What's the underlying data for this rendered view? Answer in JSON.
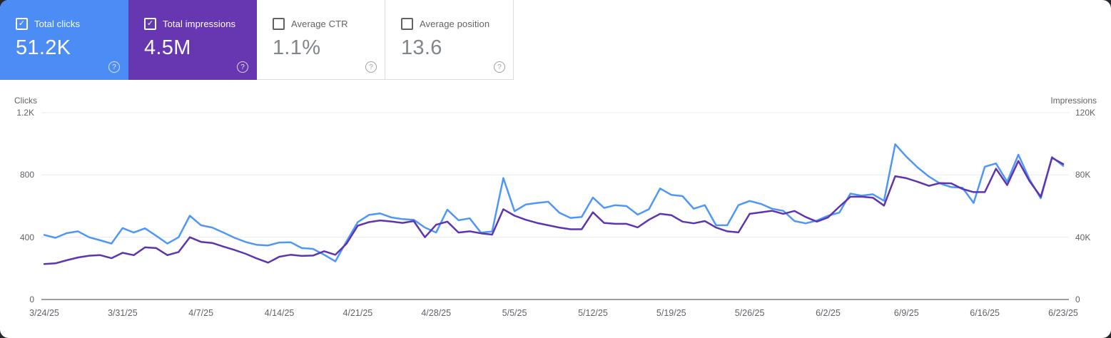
{
  "cards": [
    {
      "label": "Total clicks",
      "value": "51.2K",
      "checked": true,
      "bg": "#4b8cf5",
      "help_glyph": "?"
    },
    {
      "label": "Total impressions",
      "value": "4.5M",
      "checked": true,
      "bg": "#6637b0",
      "help_glyph": "?"
    },
    {
      "label": "Average CTR",
      "value": "1.1%",
      "checked": false,
      "bg": "#ffffff",
      "help_glyph": "?"
    },
    {
      "label": "Average position",
      "value": "13.6",
      "checked": false,
      "bg": "#ffffff",
      "help_glyph": "?"
    }
  ],
  "check_glyph": "✓",
  "chart": {
    "left_axis": {
      "title": "Clicks",
      "ticks": [
        "1.2K",
        "800",
        "400",
        "0"
      ]
    },
    "right_axis": {
      "title": "Impressions",
      "ticks": [
        "120K",
        "80K",
        "40K",
        "0"
      ]
    },
    "x_ticks": [
      "3/24/25",
      "3/31/25",
      "4/7/25",
      "4/14/25",
      "4/21/25",
      "4/28/25",
      "5/5/25",
      "5/12/25",
      "5/19/25",
      "5/26/25",
      "6/2/25",
      "6/9/25",
      "6/16/25",
      "6/23/25"
    ]
  },
  "chart_data": {
    "type": "line",
    "title": "Search performance over time",
    "x_is_daily": true,
    "x": [
      "3/24/25",
      "3/25/25",
      "3/26/25",
      "3/27/25",
      "3/28/25",
      "3/29/25",
      "3/30/25",
      "3/31/25",
      "4/1/25",
      "4/2/25",
      "4/3/25",
      "4/4/25",
      "4/5/25",
      "4/6/25",
      "4/7/25",
      "4/8/25",
      "4/9/25",
      "4/10/25",
      "4/11/25",
      "4/12/25",
      "4/13/25",
      "4/14/25",
      "4/15/25",
      "4/16/25",
      "4/17/25",
      "4/18/25",
      "4/19/25",
      "4/20/25",
      "4/21/25",
      "4/22/25",
      "4/23/25",
      "4/24/25",
      "4/25/25",
      "4/26/25",
      "4/27/25",
      "4/28/25",
      "4/29/25",
      "4/30/25",
      "5/1/25",
      "5/2/25",
      "5/3/25",
      "5/4/25",
      "5/5/25",
      "5/6/25",
      "5/7/25",
      "5/8/25",
      "5/9/25",
      "5/10/25",
      "5/11/25",
      "5/12/25",
      "5/13/25",
      "5/14/25",
      "5/15/25",
      "5/16/25",
      "5/17/25",
      "5/18/25",
      "5/19/25",
      "5/20/25",
      "5/21/25",
      "5/22/25",
      "5/23/25",
      "5/24/25",
      "5/25/25",
      "5/26/25",
      "5/27/25",
      "5/28/25",
      "5/29/25",
      "5/30/25",
      "5/31/25",
      "6/1/25",
      "6/2/25",
      "6/3/25",
      "6/4/25",
      "6/5/25",
      "6/6/25",
      "6/7/25",
      "6/8/25",
      "6/9/25",
      "6/10/25",
      "6/11/25",
      "6/12/25",
      "6/13/25",
      "6/14/25",
      "6/15/25",
      "6/16/25",
      "6/17/25",
      "6/18/25",
      "6/19/25",
      "6/20/25",
      "6/21/25",
      "6/22/25",
      "6/23/25"
    ],
    "series": [
      {
        "name": "Total clicks",
        "axis": "left",
        "color": "#4e97f7",
        "values": [
          415,
          396,
          426,
          438,
          400,
          380,
          359,
          459,
          430,
          457,
          409,
          359,
          400,
          538,
          477,
          462,
          430,
          396,
          369,
          351,
          347,
          366,
          368,
          330,
          325,
          287,
          245,
          374,
          497,
          543,
          553,
          527,
          516,
          512,
          462,
          430,
          577,
          509,
          521,
          429,
          437,
          780,
          567,
          610,
          620,
          628,
          558,
          524,
          530,
          655,
          588,
          606,
          600,
          545,
          580,
          713,
          672,
          664,
          583,
          606,
          477,
          477,
          606,
          633,
          614,
          583,
          570,
          504,
          489,
          507,
          538,
          558,
          680,
          667,
          676,
          634,
          997,
          917,
          848,
          790,
          745,
          722,
          718,
          620,
          853,
          874,
          756,
          930,
          771,
          650,
          915,
          858
        ]
      },
      {
        "name": "Total impressions",
        "axis": "right",
        "color": "#5e35b1",
        "values": [
          22800,
          23200,
          25200,
          27000,
          28100,
          28500,
          26500,
          30000,
          28500,
          33500,
          33000,
          28500,
          30500,
          40000,
          37000,
          36300,
          34000,
          31800,
          29300,
          26300,
          23700,
          27500,
          28700,
          28000,
          28200,
          31000,
          28700,
          35900,
          47400,
          49700,
          50800,
          50100,
          49200,
          50400,
          40000,
          48000,
          50000,
          43000,
          43800,
          42500,
          41700,
          58000,
          53800,
          51200,
          49200,
          47700,
          46200,
          45100,
          45100,
          56000,
          49200,
          48600,
          48600,
          46300,
          51200,
          55000,
          54200,
          50000,
          48900,
          50400,
          46200,
          43800,
          43100,
          55000,
          56000,
          57000,
          55000,
          56900,
          53000,
          50000,
          52700,
          59600,
          66000,
          66000,
          65400,
          60300,
          79200,
          77900,
          75600,
          73000,
          74800,
          74600,
          71000,
          69000,
          69000,
          84000,
          73500,
          89000,
          76000,
          66000,
          91000,
          87000
        ]
      }
    ],
    "ylim_left": [
      0,
      1200
    ],
    "ylim_right": [
      0,
      120000
    ],
    "grid": true,
    "legend": "metric cards act as legend (checked = plotted)"
  }
}
